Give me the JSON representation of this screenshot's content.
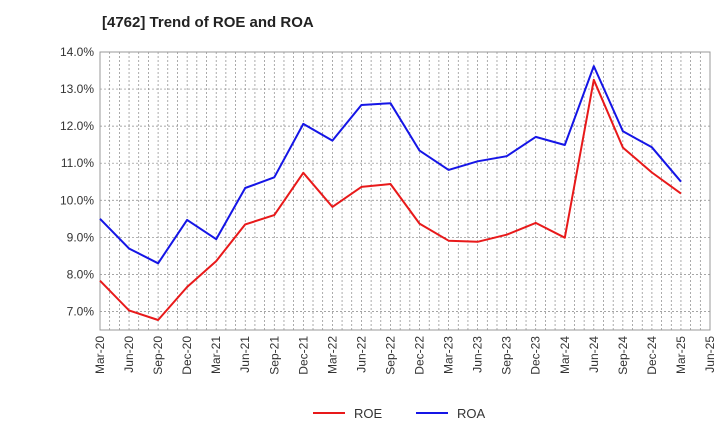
{
  "chart_data": {
    "type": "line",
    "title": "[4762]  Trend of ROE and ROA",
    "x": [
      "Mar-20",
      "Jun-20",
      "Sep-20",
      "Dec-20",
      "Mar-21",
      "Jun-21",
      "Sep-21",
      "Dec-21",
      "Mar-22",
      "Jun-22",
      "Sep-22",
      "Dec-22",
      "Mar-23",
      "Jun-23",
      "Sep-23",
      "Dec-23",
      "Mar-24",
      "Jun-24",
      "Sep-24",
      "Dec-24",
      "Mar-25",
      "Jun-25"
    ],
    "ylim": [
      6.5,
      14.0
    ],
    "yticks": [
      "7.0%",
      "8.0%",
      "9.0%",
      "10.0%",
      "11.0%",
      "12.0%",
      "13.0%",
      "14.0%"
    ],
    "ytick_values": [
      7,
      8,
      9,
      10,
      11,
      12,
      13,
      14
    ],
    "grid": true,
    "legend_position": "bottom",
    "series": [
      {
        "name": "ROE",
        "color": "#e8191a",
        "values": [
          7.83,
          7.03,
          6.77,
          7.66,
          8.36,
          9.35,
          9.6,
          10.74,
          9.82,
          10.36,
          10.44,
          9.37,
          8.91,
          8.88,
          9.07,
          9.39,
          8.99,
          13.25,
          11.42,
          10.75,
          10.18,
          null
        ]
      },
      {
        "name": "ROA",
        "color": "#1515e6",
        "values": [
          9.5,
          8.7,
          8.3,
          9.47,
          8.95,
          10.33,
          10.62,
          12.06,
          11.61,
          12.57,
          12.62,
          11.34,
          10.82,
          11.05,
          11.19,
          11.71,
          11.49,
          13.62,
          11.86,
          11.43,
          10.5,
          null
        ]
      }
    ]
  }
}
